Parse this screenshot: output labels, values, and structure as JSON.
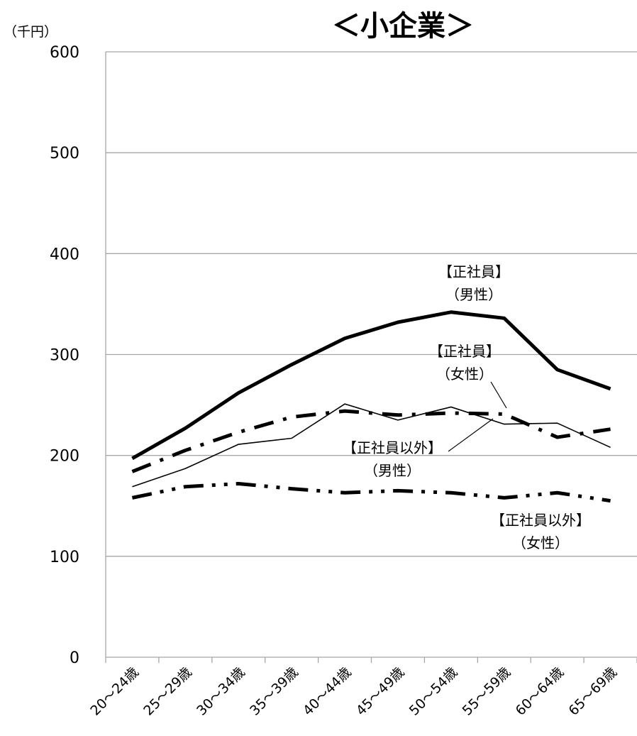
{
  "chart_data": {
    "type": "line",
    "title": "＜小企業＞",
    "unit_label": "（千円）",
    "ylim": [
      0,
      600
    ],
    "yticks": [
      "0",
      "100",
      "200",
      "300",
      "400",
      "500",
      "600"
    ],
    "categories": [
      "20～24歳",
      "25～29歳",
      "30～34歳",
      "35～39歳",
      "40～44歳",
      "45～49歳",
      "50～54歳",
      "55～59歳",
      "60～64歳",
      "65～69歳"
    ],
    "grid": true,
    "series": [
      {
        "name": "【正社員】（男性）",
        "style": "solid-thick",
        "values": [
          197,
          227,
          262,
          290,
          316,
          332,
          342,
          336,
          285,
          266
        ]
      },
      {
        "name": "【正社員】（女性）",
        "style": "solid-thin",
        "values": [
          169,
          187,
          211,
          217,
          251,
          235,
          248,
          231,
          232,
          208
        ]
      },
      {
        "name": "【正社員以外】（男性）",
        "style": "dash-dot",
        "values": [
          184,
          205,
          223,
          238,
          244,
          240,
          242,
          241,
          218,
          226
        ]
      },
      {
        "name": "【正社員以外】（女性）",
        "style": "dash-dot-dot",
        "values": [
          158,
          169,
          172,
          167,
          163,
          165,
          163,
          158,
          163,
          155
        ]
      }
    ],
    "annotations": [
      {
        "lines": [
          "【正社員】",
          "（男性）"
        ]
      },
      {
        "lines": [
          "【正社員】",
          "（女性）"
        ]
      },
      {
        "lines": [
          "【正社員以外】",
          "（男性）"
        ]
      },
      {
        "lines": [
          "【正社員以外】",
          "（女性）"
        ]
      }
    ]
  }
}
